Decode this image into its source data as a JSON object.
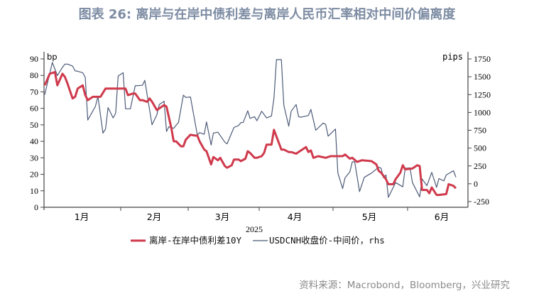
{
  "title": "图表 26: 离岸与在岸中债利差与离岸人民币汇率相对中间价偏离度",
  "source": "资料来源：Macrobond，Bloomberg，兴业研究",
  "chart_data": {
    "type": "line",
    "title": "图表 26: 离岸与在岸中债利差与离岸人民币汇率相对中间价偏离度",
    "xlabel": "2025",
    "x_tick_labels": [
      "1月",
      "2月",
      "3月",
      "4月",
      "5月",
      "6月"
    ],
    "left_axis": {
      "unit": "bp",
      "ylim": [
        0,
        90
      ],
      "ticks": [
        0,
        10,
        20,
        30,
        40,
        50,
        60,
        70,
        80,
        90
      ]
    },
    "right_axis": {
      "unit": "pips",
      "ylim": [
        -250,
        1750
      ],
      "ticks": [
        -250,
        0,
        250,
        500,
        750,
        1000,
        1250,
        1500,
        1750
      ]
    },
    "grid": false,
    "legend_position": "bottom",
    "series": [
      {
        "name": "离岸-在岸中债利差10Y",
        "axis": "left",
        "color": "#cf3a4c",
        "points": [
          [
            "2025-01-02",
            74
          ],
          [
            "2025-01-04",
            81
          ],
          [
            "2025-01-06",
            82
          ],
          [
            "2025-01-07",
            74
          ],
          [
            "2025-01-09",
            81
          ],
          [
            "2025-01-10",
            79
          ],
          [
            "2025-01-11",
            75
          ],
          [
            "2025-01-13",
            66
          ],
          [
            "2025-01-14",
            67
          ],
          [
            "2025-01-15",
            72
          ],
          [
            "2025-01-17",
            74
          ],
          [
            "2025-01-18",
            68
          ],
          [
            "2025-01-19",
            65
          ],
          [
            "2025-01-21",
            67
          ],
          [
            "2025-01-24",
            67
          ],
          [
            "2025-01-26",
            72
          ],
          [
            "2025-02-03",
            72
          ],
          [
            "2025-02-04",
            68
          ],
          [
            "2025-02-06",
            69
          ],
          [
            "2025-02-07",
            69
          ],
          [
            "2025-02-09",
            65
          ],
          [
            "2025-02-10",
            65
          ],
          [
            "2025-02-12",
            64
          ],
          [
            "2025-02-13",
            66
          ],
          [
            "2025-02-14",
            64
          ],
          [
            "2025-02-16",
            59
          ],
          [
            "2025-02-17",
            60
          ],
          [
            "2025-02-19",
            62
          ],
          [
            "2025-02-20",
            61
          ],
          [
            "2025-02-22",
            48
          ],
          [
            "2025-02-23",
            40
          ],
          [
            "2025-02-24",
            40
          ],
          [
            "2025-02-26",
            37
          ],
          [
            "2025-02-27",
            37
          ],
          [
            "2025-02-28",
            41
          ],
          [
            "2025-03-02",
            44
          ],
          [
            "2025-03-04",
            43.5
          ],
          [
            "2025-03-05",
            43.5
          ],
          [
            "2025-03-06",
            40
          ],
          [
            "2025-03-08",
            35
          ],
          [
            "2025-03-09",
            34
          ],
          [
            "2025-03-11",
            26
          ],
          [
            "2025-03-12",
            30.5
          ],
          [
            "2025-03-14",
            28.5
          ],
          [
            "2025-03-15",
            30
          ],
          [
            "2025-03-17",
            25
          ],
          [
            "2025-03-18",
            24
          ],
          [
            "2025-03-20",
            25.5
          ],
          [
            "2025-03-21",
            29
          ],
          [
            "2025-03-23",
            29
          ],
          [
            "2025-03-24",
            28
          ],
          [
            "2025-03-26",
            29.5
          ],
          [
            "2025-03-27",
            34
          ],
          [
            "2025-03-28",
            33
          ],
          [
            "2025-03-30",
            30
          ],
          [
            "2025-03-31",
            30
          ],
          [
            "2025-04-02",
            31
          ],
          [
            "2025-04-03",
            33
          ],
          [
            "2025-04-04",
            38
          ],
          [
            "2025-04-06",
            38
          ],
          [
            "2025-04-07",
            47
          ],
          [
            "2025-04-10",
            35
          ],
          [
            "2025-04-11",
            35
          ],
          [
            "2025-04-13",
            33.5
          ],
          [
            "2025-04-14",
            33.5
          ],
          [
            "2025-04-16",
            32.5
          ],
          [
            "2025-04-18",
            34.5
          ],
          [
            "2025-04-20",
            36.5
          ],
          [
            "2025-04-21",
            33.5
          ],
          [
            "2025-04-22",
            34.5
          ],
          [
            "2025-04-23",
            30
          ],
          [
            "2025-04-25",
            31
          ],
          [
            "2025-04-28",
            30
          ],
          [
            "2025-04-29",
            30.5
          ],
          [
            "2025-04-30",
            31
          ],
          [
            "2025-05-05",
            31
          ],
          [
            "2025-05-06",
            32
          ],
          [
            "2025-05-08",
            29.5
          ],
          [
            "2025-05-09",
            30
          ],
          [
            "2025-05-11",
            27.5
          ],
          [
            "2025-05-13",
            28.5
          ],
          [
            "2025-05-17",
            28
          ],
          [
            "2025-05-19",
            26
          ],
          [
            "2025-05-20",
            22
          ],
          [
            "2025-05-21",
            21
          ],
          [
            "2025-05-23",
            17
          ],
          [
            "2025-05-24",
            14
          ],
          [
            "2025-05-26",
            14
          ],
          [
            "2025-05-27",
            17
          ],
          [
            "2025-05-29",
            21
          ],
          [
            "2025-05-30",
            25.5
          ],
          [
            "2025-05-31",
            23
          ],
          [
            "2025-06-03",
            23.5
          ],
          [
            "2025-06-05",
            25.5
          ],
          [
            "2025-06-06",
            25
          ],
          [
            "2025-06-07",
            10.5
          ],
          [
            "2025-06-09",
            10.5
          ],
          [
            "2025-06-10",
            8.5
          ],
          [
            "2025-06-11",
            12
          ],
          [
            "2025-06-13",
            7.5
          ],
          [
            "2025-06-14",
            7.5
          ],
          [
            "2025-06-17",
            8
          ],
          [
            "2025-06-18",
            14
          ],
          [
            "2025-06-20",
            13
          ],
          [
            "2025-06-21",
            11.5
          ]
        ]
      },
      {
        "name": "USDCNH收盘价-中间价，rhs",
        "axis": "right",
        "color": "#4d5b78",
        "points": [
          [
            "2025-01-02",
            1250
          ],
          [
            "2025-01-05",
            1700
          ],
          [
            "2025-01-07",
            1517
          ],
          [
            "2025-01-09",
            1633
          ],
          [
            "2025-01-10",
            1677
          ],
          [
            "2025-01-11",
            1677
          ],
          [
            "2025-01-13",
            1650
          ],
          [
            "2025-01-14",
            1583
          ],
          [
            "2025-01-15",
            1577
          ],
          [
            "2025-01-17",
            1557
          ],
          [
            "2025-01-18",
            1490
          ],
          [
            "2025-01-19",
            893
          ],
          [
            "2025-01-22",
            1083
          ],
          [
            "2025-01-23",
            1223
          ],
          [
            "2025-01-25",
            710
          ],
          [
            "2025-01-26",
            767
          ],
          [
            "2025-01-27",
            1067
          ],
          [
            "2025-01-29",
            923
          ],
          [
            "2025-01-30",
            990
          ],
          [
            "2025-01-31",
            1510
          ],
          [
            "2025-02-02",
            1557
          ],
          [
            "2025-02-03",
            1050
          ],
          [
            "2025-02-05",
            1050
          ],
          [
            "2025-02-07",
            1373
          ],
          [
            "2025-02-10",
            1380
          ],
          [
            "2025-02-11",
            1450
          ],
          [
            "2025-02-14",
            827
          ],
          [
            "2025-02-16",
            967
          ],
          [
            "2025-02-17",
            1110
          ],
          [
            "2025-02-19",
            1157
          ],
          [
            "2025-02-20",
            733
          ],
          [
            "2025-02-21",
            800
          ],
          [
            "2025-02-23",
            777
          ],
          [
            "2025-02-25",
            860
          ],
          [
            "2025-02-27",
            1243
          ],
          [
            "2025-02-28",
            1210
          ],
          [
            "2025-03-02",
            1217
          ],
          [
            "2025-03-05",
            683
          ],
          [
            "2025-03-06",
            717
          ],
          [
            "2025-03-08",
            693
          ],
          [
            "2025-03-09",
            867
          ],
          [
            "2025-03-11",
            543
          ],
          [
            "2025-03-12",
            710
          ],
          [
            "2025-03-14",
            723
          ],
          [
            "2025-03-17",
            583
          ],
          [
            "2025-03-18",
            560
          ],
          [
            "2025-03-21",
            790
          ],
          [
            "2025-03-23",
            817
          ],
          [
            "2025-03-24",
            857
          ],
          [
            "2025-03-25",
            857
          ],
          [
            "2025-03-27",
            1023
          ],
          [
            "2025-03-28",
            917
          ],
          [
            "2025-03-30",
            940
          ],
          [
            "2025-03-31",
            883
          ],
          [
            "2025-04-02",
            1017
          ],
          [
            "2025-04-04",
            923
          ],
          [
            "2025-04-06",
            950
          ],
          [
            "2025-04-07",
            1200
          ],
          [
            "2025-04-08",
            1740
          ],
          [
            "2025-04-10",
            1740
          ],
          [
            "2025-04-11",
            1100
          ],
          [
            "2025-04-13",
            807
          ],
          [
            "2025-04-14",
            1017
          ],
          [
            "2025-04-16",
            1110
          ],
          [
            "2025-04-17",
            940
          ],
          [
            "2025-04-18",
            933
          ],
          [
            "2025-04-21",
            957
          ],
          [
            "2025-04-22",
            1043
          ],
          [
            "2025-04-24",
            750
          ],
          [
            "2025-04-27",
            850
          ],
          [
            "2025-04-28",
            833
          ],
          [
            "2025-04-29",
            667
          ],
          [
            "2025-05-02",
            767
          ],
          [
            "2025-05-03",
            150
          ],
          [
            "2025-05-05",
            -67
          ],
          [
            "2025-05-06",
            83
          ],
          [
            "2025-05-08",
            167
          ],
          [
            "2025-05-09",
            307
          ],
          [
            "2025-05-10",
            307
          ],
          [
            "2025-05-12",
            -110
          ],
          [
            "2025-05-14",
            90
          ],
          [
            "2025-05-17",
            150
          ],
          [
            "2025-05-20",
            233
          ],
          [
            "2025-05-21",
            217
          ],
          [
            "2025-05-22",
            83
          ],
          [
            "2025-05-23",
            123
          ],
          [
            "2025-05-24",
            -190
          ],
          [
            "2025-05-27",
            17
          ],
          [
            "2025-05-30",
            -43
          ],
          [
            "2025-05-31",
            217
          ],
          [
            "2025-06-02",
            223
          ],
          [
            "2025-06-03",
            17
          ],
          [
            "2025-06-06",
            -183
          ],
          [
            "2025-06-07",
            67
          ],
          [
            "2025-06-09",
            -27
          ],
          [
            "2025-06-11",
            160
          ],
          [
            "2025-06-13",
            -50
          ],
          [
            "2025-06-14",
            73
          ],
          [
            "2025-06-16",
            40
          ],
          [
            "2025-06-17",
            123
          ],
          [
            "2025-06-20",
            183
          ],
          [
            "2025-06-21",
            93
          ]
        ]
      }
    ]
  }
}
